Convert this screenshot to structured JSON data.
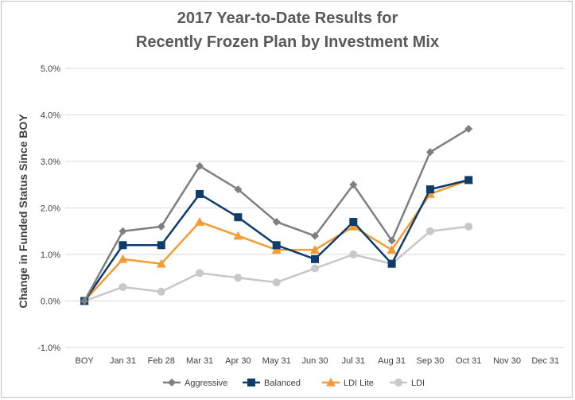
{
  "chart_data": {
    "type": "line",
    "title": "2017 Year-to-Date Results for Recently Frozen Plan by Investment Mix",
    "title_lines": [
      "2017 Year-to-Date Results for",
      "Recently Frozen Plan by Investment Mix"
    ],
    "xlabel": "",
    "ylabel": "Change in Funded Status Since BOY",
    "categories": [
      "BOY",
      "Jan 31",
      "Feb 28",
      "Mar 31",
      "Apr 30",
      "May 31",
      "Jun 30",
      "Jul 31",
      "Aug 31",
      "Sep 30",
      "Oct 31",
      "Nov 30",
      "Dec 31"
    ],
    "ylim": [
      -1.0,
      5.0
    ],
    "yticks": [
      -1.0,
      0.0,
      1.0,
      2.0,
      3.0,
      4.0,
      5.0
    ],
    "ytick_labels": [
      "-1.0%",
      "0.0%",
      "1.0%",
      "2.0%",
      "3.0%",
      "4.0%",
      "5.0%"
    ],
    "grid": "horizontal",
    "legend_position": "bottom",
    "series": [
      {
        "name": "Aggressive",
        "color": "#7f7f7f",
        "marker": "diamond",
        "values": [
          0.0,
          1.5,
          1.6,
          2.9,
          2.4,
          1.7,
          1.4,
          2.5,
          1.3,
          3.2,
          3.7,
          null,
          null
        ]
      },
      {
        "name": "Balanced",
        "color": "#0e3c6b",
        "marker": "square",
        "values": [
          0.0,
          1.2,
          1.2,
          2.3,
          1.8,
          1.2,
          0.9,
          1.7,
          0.8,
          2.4,
          2.6,
          null,
          null
        ]
      },
      {
        "name": "LDI Lite",
        "color": "#f39c32",
        "marker": "triangle",
        "values": [
          0.0,
          0.9,
          0.8,
          1.7,
          1.4,
          1.1,
          1.1,
          1.6,
          1.1,
          2.3,
          2.6,
          null,
          null
        ]
      },
      {
        "name": "LDI",
        "color": "#c8c8c8",
        "marker": "circle",
        "values": [
          0.0,
          0.3,
          0.2,
          0.6,
          0.5,
          0.4,
          0.7,
          1.0,
          0.8,
          1.5,
          1.6,
          null,
          null
        ]
      }
    ]
  }
}
